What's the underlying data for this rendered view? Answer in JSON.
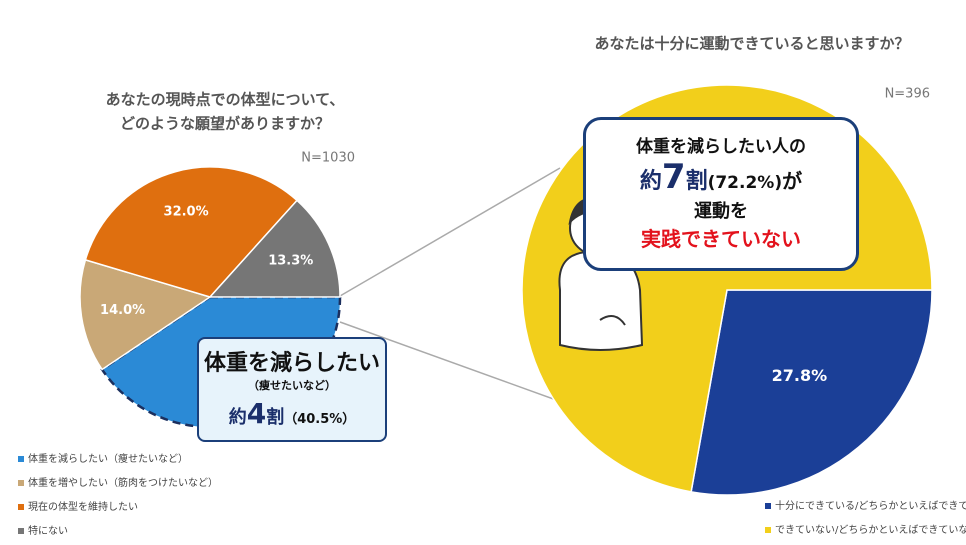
{
  "chart_data": [
    {
      "type": "pie",
      "title": [
        "あなたの現時点での体型について、",
        "どのような願望がありますか？"
      ],
      "n_label": "N=1030",
      "categories": [
        "体重を減らしたい（痩せたいなど）",
        "体重を増やしたい（筋肉をつけたいなど）",
        "現在の体型を維持したい",
        "特にない"
      ],
      "values": [
        40.5,
        14.0,
        32.0,
        13.3
      ],
      "value_labels": [
        null,
        "14.0%",
        "32.0%",
        "13.3%"
      ],
      "colors": [
        "#2b8ad6",
        "#c9a877",
        "#df6f0f",
        "#767676"
      ],
      "callout": {
        "heading": "体重を減らしたい",
        "note": "（痩せたいなど）",
        "prefix": "約",
        "number": "4",
        "unit": "割",
        "detail": "（40.5%）"
      }
    },
    {
      "type": "pie",
      "title": [
        "あなたは十分に運動できていると思いますか？"
      ],
      "n_label": "N=396",
      "categories": [
        "十分にできている/どちらかといえばできている",
        "できていない/どちらかといえばできていない"
      ],
      "values": [
        27.8,
        72.2
      ],
      "value_labels": [
        "27.8%",
        null
      ],
      "colors": [
        "#1b3f97",
        "#f2cf1b"
      ],
      "callout": {
        "line1": "体重を減らしたい人の",
        "prefix": "約",
        "number": "7",
        "unit": "割",
        "detail": "(72.2%)",
        "suffix": "が",
        "line3": "運動を",
        "line4": "実践できていない"
      }
    }
  ]
}
